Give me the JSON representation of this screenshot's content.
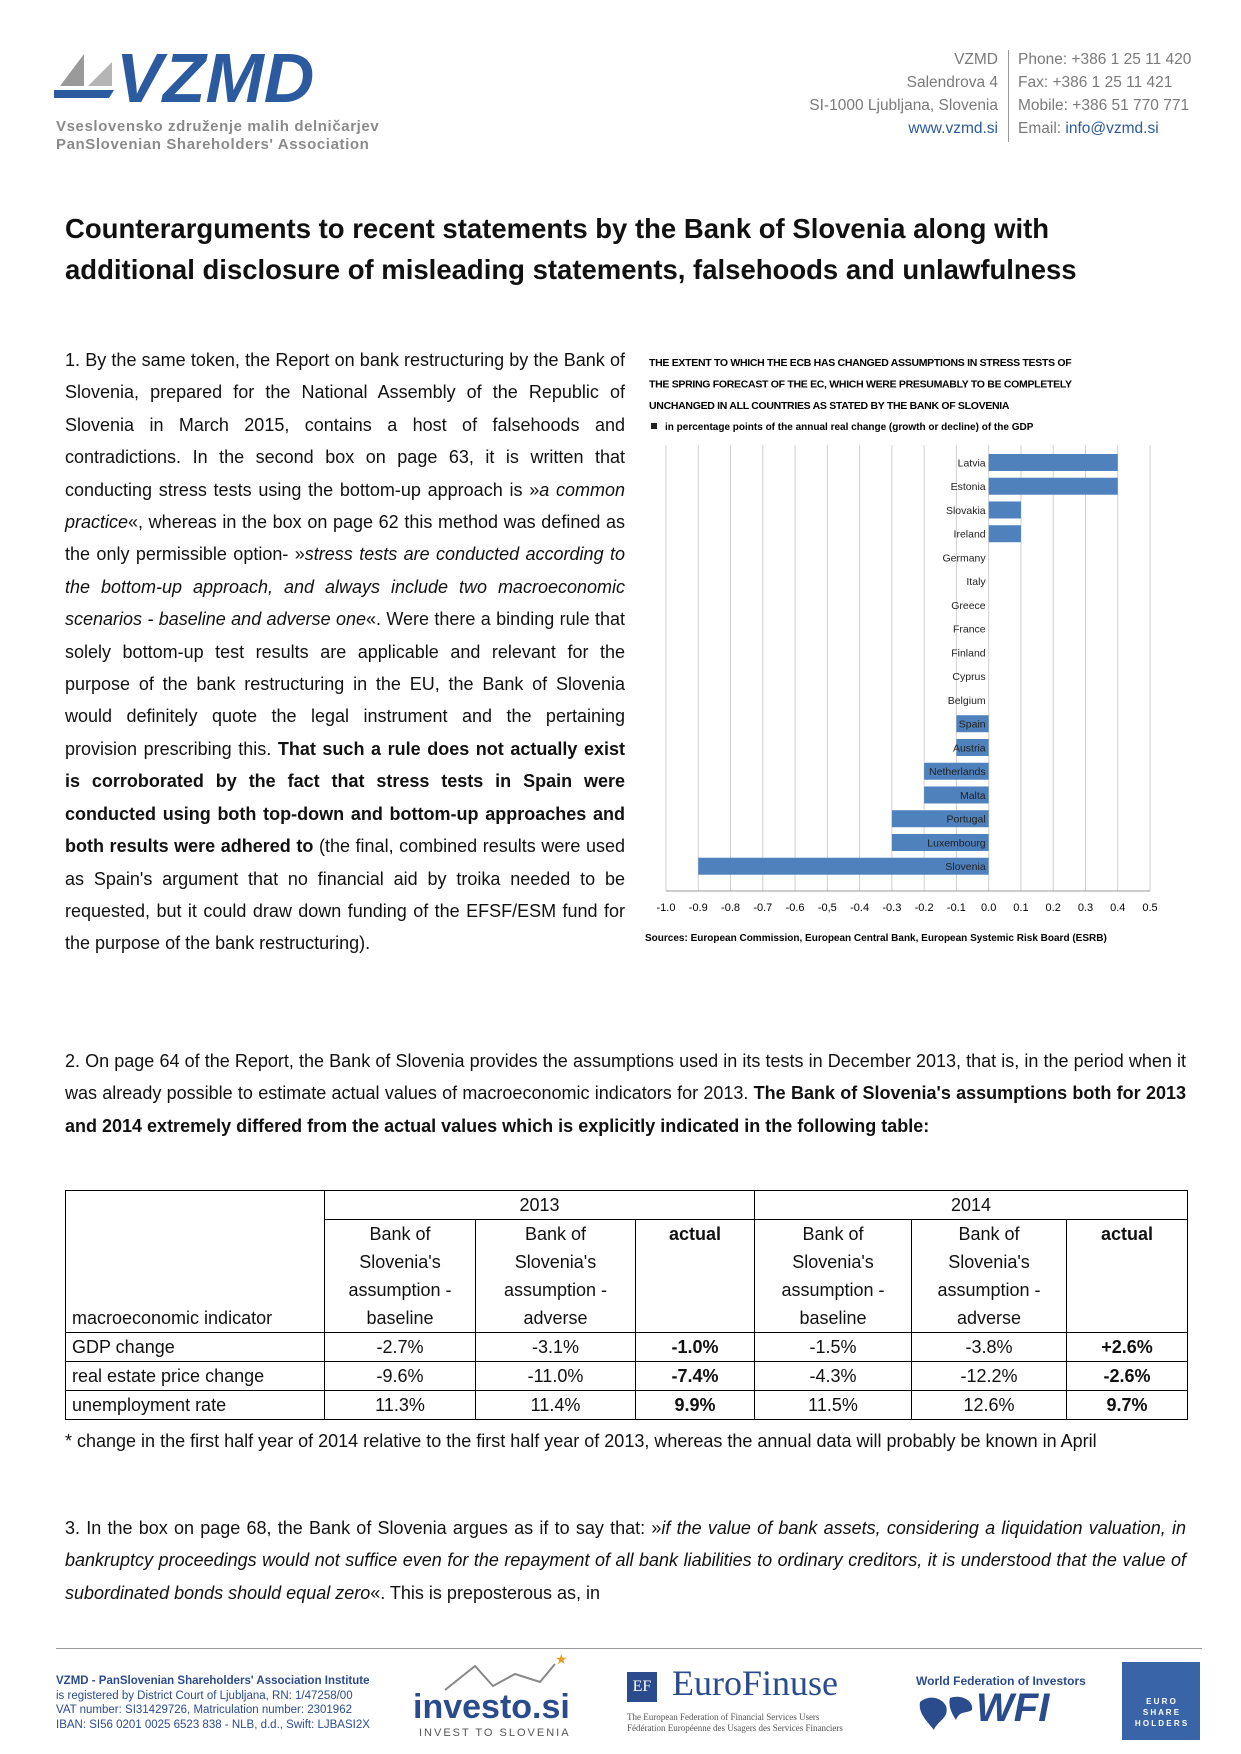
{
  "header": {
    "logo": "VZMD",
    "logo_sub": [
      "Vseslovensko združenje malih delničarjev",
      "PanSlovenian Shareholders' Association"
    ],
    "address": [
      "VZMD",
      "Salendrova 4",
      "SI-1000 Ljubljana, Slovenia",
      "www.vzmd.si"
    ],
    "contact": [
      "Phone: +386 1 25 11 420",
      "Fax: +386 1 25 11 421",
      "Mobile: +386 51 770 771"
    ],
    "email_label": "Email:",
    "email": "info@vzmd.si"
  },
  "title": [
    "Counterarguments to recent statements by the Bank of Slovenia along with",
    "additional disclosure of misleading statements, falsehoods and unlawfulness"
  ],
  "paragraphs": [
    {
      "runs": [
        "1. By the same token, the Report on bank restructuring by the Bank of Slovenia, prepared for the National Assembly of the Republic of Slovenia in March 2015, contains a host of falsehoods and contradictions. In the second box on page 63, it is written that conducting stress tests using the bottom-up approach is »",
        "a common practice",
        "«, whereas in the box on page 62 this method was defined as the only permissible option- »",
        "stress tests are conducted according to the bottom-up approach, and always include two macroeconomic scenarios - baseline and adverse one",
        "«. Were there a binding rule that solely bottom-up test results are applicable and relevant for the purpose of the bank restructuring in the EU, the Bank of Slovenia would definitely quote the legal instrument and the pertaining provision prescribing this. ",
        "That such a rule does not actually exist is corroborated by the fact that stress tests in Spain were conducted using both top-down and bottom-up approaches and both results were adhered to",
        " (the final, combined results were used as Spain's argument that no financial aid by troika needed to be requested, but it could draw down funding of the EFSF/ESM fund for the purpose of the bank restructuring)."
      ]
    },
    {
      "runs": [
        "2. On page 64 of the Report, the Bank of Slovenia provides the assumptions used in its tests in December 2013, that is, in the period when it was already possible to estimate actual values of macroeconomic indicators for 2013. ",
        "The Bank of Slovenia's assumptions both for 2013 and 2014 extremely differed from the actual values which is explicitly indicated in the following table:"
      ]
    },
    {
      "runs": [
        "3. In the box on page 68, the Bank of Slovenia argues as if to say that: »",
        "if the value of bank assets, considering a liquidation valuation, in bankruptcy proceedings would not suffice even for the repayment of all bank liabilities to ordinary creditors, it is understood that the value of subordinated bonds should equal zero",
        "«. This is preposterous as, in"
      ]
    }
  ],
  "chart_data": {
    "type": "bar",
    "orientation": "horizontal",
    "title": [
      "THE EXTENT TO WHICH THE ECB HAS CHANGED ASSUMPTIONS IN STRESS TESTS OF",
      "THE SPRING FORECAST OF THE EC, WHICH WERE PRESUMABLY TO BE COMPLETELY",
      "UNCHANGED IN ALL COUNTRIES AS STATED BY THE BANK OF SLOVENIA"
    ],
    "subtitle": "in percentage points of the annual real change (growth or decline) of the GDP",
    "categories": [
      "Latvia",
      "Estonia",
      "Slovakia",
      "Ireland",
      "Germany",
      "Italy",
      "Greece",
      "France",
      "Finland",
      "Cyprus",
      "Belgium",
      "Spain",
      "Austria",
      "Netherlands",
      "Malta",
      "Portugal",
      "Luxembourg",
      "Slovenia"
    ],
    "values": [
      0.4,
      0.4,
      0.1,
      0.1,
      0,
      0,
      0,
      0,
      0,
      0,
      0,
      -0.1,
      -0.1,
      -0.2,
      -0.2,
      -0.3,
      -0.3,
      -0.9
    ],
    "color": "#4f81bd",
    "xlim": [
      -1.0,
      0.5
    ],
    "xticks": [
      {
        "value": -1.0,
        "label": "-1.0"
      },
      -0.9,
      -0.8,
      -0.7,
      -0.6,
      {
        "value": -0.5,
        "label": "-0,5"
      },
      -0.4,
      -0.3,
      -0.2,
      -0.1,
      {
        "value": 0,
        "label": "0.0"
      },
      0.1,
      0.2,
      0.3,
      0.4,
      0.5
    ],
    "grid": true,
    "source": "Sources: European Commission, European Central Bank, European Systemic Risk Board (ESRB)"
  },
  "table": {
    "corner": "macroeconomic indicator",
    "years": [
      "2013",
      "2014"
    ],
    "columns": [
      "Bank of Slovenia's assumption - baseline",
      "Bank of Slovenia's assumption - adverse",
      "actual",
      "Bank of Slovenia's assumption - baseline",
      "Bank of Slovenia's assumption - adverse",
      "actual"
    ],
    "rows": [
      [
        "GDP change",
        "-2.7%",
        "-3.1%",
        "-1.0%",
        "-1.5%",
        "-3.8%",
        "+2.6%"
      ],
      [
        "real estate price change",
        "-9.6%",
        "-11.0%",
        "-7.4%",
        "-4.3%",
        "-12.2%",
        "-2.6%"
      ],
      [
        "unemployment rate",
        "11.3%",
        "11.4%",
        "9.9%",
        "11.5%",
        "12.6%",
        "9.7%"
      ]
    ]
  },
  "footnote": "* change in the first half year of 2014 relative to the first half year of 2013, whereas the annual data will probably be known in April",
  "footer": {
    "lines": [
      "VZMD - PanSlovenian Shareholders' Association Institute",
      "is registered by District Court of Ljubljana, RN: 1/47258/00",
      "VAT number: SI31429726, Matriculation number: 2301962",
      "IBAN: SI56 0201 0025 6523 838 - NLB, d.d., Swift: LJBASI2X"
    ],
    "investo": "investo.si",
    "investo_sub": "INVEST TO SLOVENIA",
    "ef": "EF",
    "eurofinuse": "EuroFinuse",
    "eurofinuse_sub": [
      "The European Federation of Financial Services Users",
      "Fédération Européenne des Usagers des Services Financiers"
    ],
    "wfi_title": "World Federation of Investors",
    "wfi": "WFI",
    "euroshare": [
      "E U R O",
      "S H A R E",
      "H O L D E R S"
    ]
  }
}
